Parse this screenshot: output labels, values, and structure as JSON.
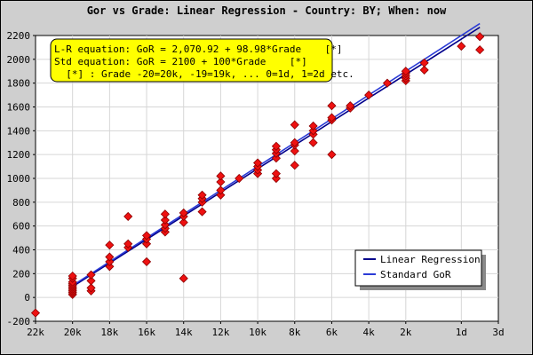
{
  "chart_data": {
    "type": "scatter",
    "title": "Gor vs Grade: Linear Regression - Country: BY; When: now",
    "xlabel": "",
    "ylabel": "",
    "xlim": [
      -22,
      3
    ],
    "ylim": [
      -200,
      2200
    ],
    "grid": true,
    "x_ticks": [
      {
        "value": -22,
        "label": "22k"
      },
      {
        "value": -20,
        "label": "20k"
      },
      {
        "value": -18,
        "label": "18k"
      },
      {
        "value": -16,
        "label": "16k"
      },
      {
        "value": -14,
        "label": "14k"
      },
      {
        "value": -12,
        "label": "12k"
      },
      {
        "value": -10,
        "label": "10k"
      },
      {
        "value": -8,
        "label": "8k"
      },
      {
        "value": -6,
        "label": "6k"
      },
      {
        "value": -4,
        "label": "4k"
      },
      {
        "value": -2,
        "label": "2k"
      },
      {
        "value": 1,
        "label": "1d"
      },
      {
        "value": 3,
        "label": "3d"
      }
    ],
    "y_ticks": [
      -200,
      0,
      200,
      400,
      600,
      800,
      1000,
      1200,
      1400,
      1600,
      1800,
      2000,
      2200
    ],
    "annotation": {
      "lines": [
        "L-R equation: GoR = 2,070.92 + 98.98*Grade    [*]",
        "Std equation: GoR = 2100 + 100*Grade    [*]",
        "  [*] : Grade -20=20k, -19=19k, ... 0=1d, 1=2d etc."
      ],
      "background": "#ffff00"
    },
    "legend": {
      "placement": "bottom-right",
      "entries": [
        "Linear Regression",
        "Standard GoR"
      ]
    },
    "series": [
      {
        "name": "Linear Regression",
        "kind": "line",
        "color": "#00008b",
        "intercept": 2070.92,
        "slope": 98.98,
        "x_range": [
          -20,
          2
        ]
      },
      {
        "name": "Standard GoR",
        "kind": "line",
        "color": "#2b3bd6",
        "intercept": 2100,
        "slope": 100,
        "x_range": [
          -20,
          2
        ]
      },
      {
        "name": "Players",
        "kind": "points",
        "color": "#ee1111",
        "points": [
          [
            -22,
            -130
          ],
          [
            -20,
            25
          ],
          [
            -20,
            40
          ],
          [
            -20,
            55
          ],
          [
            -20,
            70
          ],
          [
            -20,
            85
          ],
          [
            -20,
            100
          ],
          [
            -20,
            115
          ],
          [
            -20,
            130
          ],
          [
            -20,
            160
          ],
          [
            -20,
            180
          ],
          [
            -19,
            55
          ],
          [
            -19,
            80
          ],
          [
            -19,
            140
          ],
          [
            -19,
            190
          ],
          [
            -18,
            260
          ],
          [
            -18,
            300
          ],
          [
            -18,
            340
          ],
          [
            -18,
            440
          ],
          [
            -17,
            420
          ],
          [
            -17,
            450
          ],
          [
            -17,
            680
          ],
          [
            -16,
            300
          ],
          [
            -16,
            450
          ],
          [
            -16,
            490
          ],
          [
            -16,
            520
          ],
          [
            -15,
            550
          ],
          [
            -15,
            580
          ],
          [
            -15,
            610
          ],
          [
            -15,
            650
          ],
          [
            -15,
            700
          ],
          [
            -14,
            160
          ],
          [
            -14,
            630
          ],
          [
            -14,
            680
          ],
          [
            -14,
            710
          ],
          [
            -13,
            720
          ],
          [
            -13,
            800
          ],
          [
            -13,
            830
          ],
          [
            -13,
            860
          ],
          [
            -12,
            860
          ],
          [
            -12,
            900
          ],
          [
            -12,
            970
          ],
          [
            -12,
            1020
          ],
          [
            -11,
            1000
          ],
          [
            -10,
            1040
          ],
          [
            -10,
            1070
          ],
          [
            -10,
            1100
          ],
          [
            -10,
            1130
          ],
          [
            -9,
            1000
          ],
          [
            -9,
            1040
          ],
          [
            -9,
            1170
          ],
          [
            -9,
            1210
          ],
          [
            -9,
            1240
          ],
          [
            -9,
            1270
          ],
          [
            -8,
            1110
          ],
          [
            -8,
            1230
          ],
          [
            -8,
            1280
          ],
          [
            -8,
            1300
          ],
          [
            -8,
            1450
          ],
          [
            -7,
            1300
          ],
          [
            -7,
            1370
          ],
          [
            -7,
            1400
          ],
          [
            -7,
            1440
          ],
          [
            -6,
            1200
          ],
          [
            -6,
            1490
          ],
          [
            -6,
            1510
          ],
          [
            -6,
            1610
          ],
          [
            -5,
            1590
          ],
          [
            -5,
            1610
          ],
          [
            -4,
            1700
          ],
          [
            -3,
            1800
          ],
          [
            -2,
            1820
          ],
          [
            -2,
            1840
          ],
          [
            -2,
            1860
          ],
          [
            -2,
            1880
          ],
          [
            -2,
            1900
          ],
          [
            -1,
            1910
          ],
          [
            -1,
            1970
          ],
          [
            1,
            2110
          ],
          [
            2,
            2080
          ],
          [
            2,
            2190
          ]
        ]
      }
    ]
  }
}
